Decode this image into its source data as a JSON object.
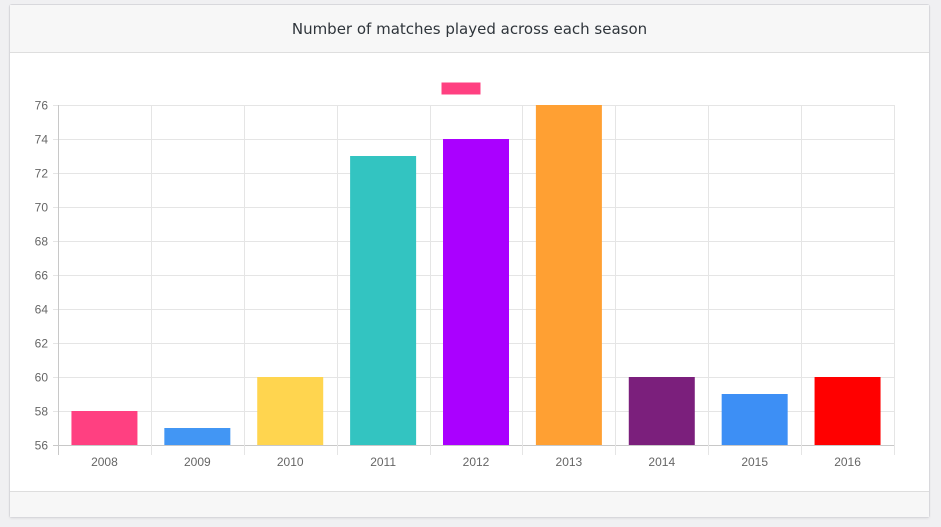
{
  "header": {
    "title": "Number of matches played across each season"
  },
  "chart_data": {
    "type": "bar",
    "title": "Number of matches played across each season",
    "xlabel": "",
    "ylabel": "",
    "categories": [
      "2008",
      "2009",
      "2010",
      "2011",
      "2012",
      "2013",
      "2014",
      "2015",
      "2016"
    ],
    "values": [
      58,
      57,
      60,
      73,
      74,
      76,
      60,
      59,
      60
    ],
    "colors": [
      "#ff4081",
      "#4296f4",
      "#ffd54f",
      "#33c4c1",
      "#aa00ff",
      "#ffa033",
      "#7b1f7c",
      "#3d8ff5",
      "#ff0000"
    ],
    "ylim": [
      56,
      76
    ],
    "yticks": [
      56,
      58,
      60,
      62,
      64,
      66,
      68,
      70,
      72,
      74,
      76
    ],
    "legend": {
      "position": "top-center",
      "swatch_color": "#ff4081",
      "label": ""
    },
    "grid": true
  }
}
